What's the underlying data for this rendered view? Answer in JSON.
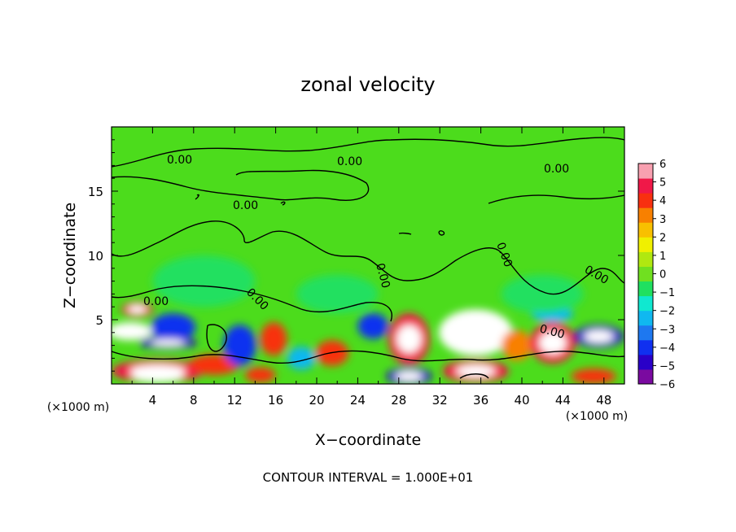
{
  "chart_data": {
    "type": "heatmap",
    "title": "zonal velocity",
    "xlabel": "X−coordinate",
    "ylabel": "Z−coordinate",
    "x_unit": "(×1000 m)",
    "z_unit": "(×1000 m)",
    "xlim": [
      0,
      50
    ],
    "zlim": [
      0,
      20
    ],
    "x_ticks": [
      "4",
      "8",
      "12",
      "16",
      "20",
      "24",
      "28",
      "32",
      "36",
      "40",
      "44",
      "48"
    ],
    "z_ticks": [
      "5",
      "10",
      "15"
    ],
    "colorbar": {
      "ticks": [
        "6",
        "5",
        "4",
        "3",
        "2",
        "1",
        "0",
        "−1",
        "−2",
        "−3",
        "−4",
        "−5",
        "−6"
      ],
      "range": [
        -6,
        6
      ],
      "colors": [
        "#7a0aa0",
        "#2a00c8",
        "#1030f0",
        "#1e78f0",
        "#10b8f0",
        "#10e8d0",
        "#20e060",
        "#70e020",
        "#b0e810",
        "#f0f000",
        "#f8c000",
        "#f88000",
        "#f83010",
        "#f01848",
        "#f8a0b0"
      ]
    },
    "contour_labels": [
      "0.00",
      "0.00",
      "0.00",
      "0.00",
      "0.00",
      "0.00",
      "0.00",
      "0.00",
      "0.00",
      "0.00"
    ],
    "footer": "CONTOUR INTERVAL = 1.000E+01",
    "blobs": [
      {
        "x": 2.5,
        "z": 5.8,
        "rx": 1.5,
        "rz": 0.6,
        "v": 5
      },
      {
        "x": 1.8,
        "z": 4.1,
        "rx": 2.2,
        "rz": 0.7,
        "v": -6
      },
      {
        "x": 6,
        "z": 4.4,
        "rx": 2.2,
        "rz": 1.1,
        "v": -4
      },
      {
        "x": 5.5,
        "z": 3.2,
        "rx": 2.8,
        "rz": 0.5,
        "v": -5
      },
      {
        "x": 4.5,
        "z": 1.0,
        "rx": 4.5,
        "rz": 0.9,
        "v": 5
      },
      {
        "x": 4.5,
        "z": 0.6,
        "rx": 2.5,
        "rz": 0.5,
        "v": 6
      },
      {
        "x": 10,
        "z": 1.5,
        "rx": 2.5,
        "rz": 0.8,
        "v": 4
      },
      {
        "x": 12.5,
        "z": 3.0,
        "rx": 1.6,
        "rz": 1.6,
        "v": -4
      },
      {
        "x": 15.8,
        "z": 3.5,
        "rx": 1.3,
        "rz": 1.3,
        "v": 4
      },
      {
        "x": 14.5,
        "z": 0.7,
        "rx": 1.5,
        "rz": 0.6,
        "v": 4
      },
      {
        "x": 18.5,
        "z": 2.0,
        "rx": 1.4,
        "rz": 0.9,
        "v": -3
      },
      {
        "x": 21.5,
        "z": 2.4,
        "rx": 1.6,
        "rz": 1.0,
        "v": 4
      },
      {
        "x": 25.5,
        "z": 4.5,
        "rx": 1.5,
        "rz": 1.0,
        "v": -4
      },
      {
        "x": 29,
        "z": 3.5,
        "rx": 2.0,
        "rz": 2.0,
        "v": 5
      },
      {
        "x": 29,
        "z": 0.6,
        "rx": 2.2,
        "rz": 0.7,
        "v": -5
      },
      {
        "x": 35.5,
        "z": 4.0,
        "rx": 3.6,
        "rz": 1.8,
        "v": -6
      },
      {
        "x": 35.5,
        "z": 1.0,
        "rx": 3.2,
        "rz": 0.9,
        "v": 5
      },
      {
        "x": 39.5,
        "z": 3.0,
        "rx": 1.5,
        "rz": 1.2,
        "v": 3
      },
      {
        "x": 43,
        "z": 3.2,
        "rx": 2.2,
        "rz": 1.6,
        "v": 5
      },
      {
        "x": 43,
        "z": 5.4,
        "rx": 2.0,
        "rz": 0.6,
        "v": -3
      },
      {
        "x": 47.5,
        "z": 3.7,
        "rx": 2.4,
        "rz": 0.9,
        "v": -5
      },
      {
        "x": 47,
        "z": 0.6,
        "rx": 2.2,
        "rz": 0.6,
        "v": 4
      },
      {
        "x": 9,
        "z": 8,
        "rx": 5,
        "rz": 2,
        "v": -1
      },
      {
        "x": 22,
        "z": 7,
        "rx": 4,
        "rz": 1.5,
        "v": -1
      },
      {
        "x": 42,
        "z": 7,
        "rx": 4,
        "rz": 1.5,
        "v": -1
      }
    ]
  }
}
